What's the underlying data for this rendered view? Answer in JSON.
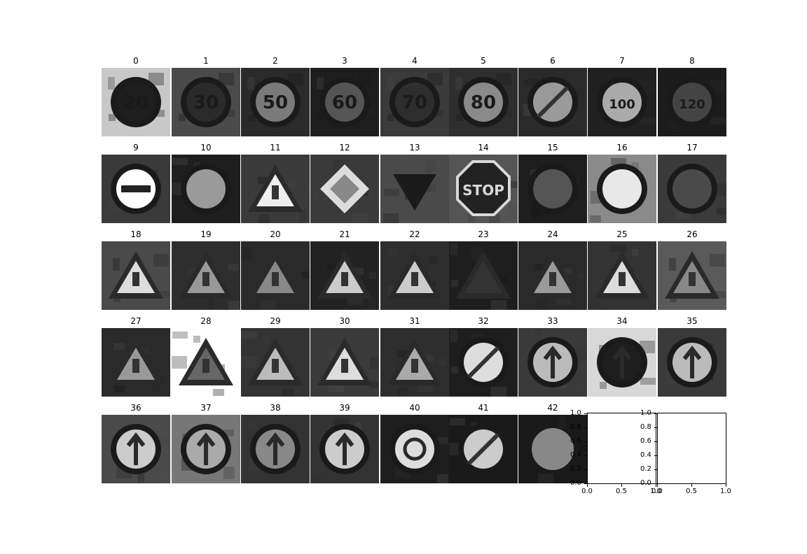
{
  "figure": {
    "tiles": [
      {
        "label": "0",
        "sign": "speed-limit-20",
        "bg": "#c8c8c8",
        "fg": "#1e1e1e",
        "text": "20"
      },
      {
        "label": "1",
        "sign": "speed-limit-30",
        "bg": "#4a4a4a",
        "fg": "#2a2a2a",
        "text": "30"
      },
      {
        "label": "2",
        "sign": "speed-limit-50",
        "bg": "#2a2a2a",
        "fg": "#7a7a7a",
        "text": "50"
      },
      {
        "label": "3",
        "sign": "speed-limit-60",
        "bg": "#1e1e1e",
        "fg": "#555555",
        "text": "60"
      },
      {
        "label": "4",
        "sign": "speed-limit-70",
        "bg": "#3a3a3a",
        "fg": "#2e2e2e",
        "text": "70"
      },
      {
        "label": "5",
        "sign": "speed-limit-80",
        "bg": "#2e2e2e",
        "fg": "#8a8a8a",
        "text": "80"
      },
      {
        "label": "6",
        "sign": "end-speed-limit-80",
        "bg": "#2a2a2a",
        "fg": "#9a9a9a",
        "text": ""
      },
      {
        "label": "7",
        "sign": "speed-limit-100",
        "bg": "#202020",
        "fg": "#aaaaaa",
        "text": "100"
      },
      {
        "label": "8",
        "sign": "speed-limit-120",
        "bg": "#1c1c1c",
        "fg": "#444444",
        "text": "120"
      },
      {
        "label": "9",
        "sign": "no-passing",
        "bg": "#3a3a3a",
        "fg": "#ffffff",
        "text": ""
      },
      {
        "label": "10",
        "sign": "no-passing-trucks",
        "bg": "#1e1e1e",
        "fg": "#9a9a9a",
        "text": ""
      },
      {
        "label": "11",
        "sign": "right-of-way",
        "bg": "#3a3a3a",
        "fg": "#eeeeee",
        "text": ""
      },
      {
        "label": "12",
        "sign": "priority-road",
        "bg": "#3a3a3a",
        "fg": "#dddddd",
        "text": ""
      },
      {
        "label": "13",
        "sign": "yield",
        "bg": "#4a4a4a",
        "fg": "#1a1a1a",
        "text": ""
      },
      {
        "label": "14",
        "sign": "stop",
        "bg": "#555555",
        "fg": "#d8d8d8",
        "text": "STOP"
      },
      {
        "label": "15",
        "sign": "no-vehicles",
        "bg": "#1e1e1e",
        "fg": "#555555",
        "text": ""
      },
      {
        "label": "16",
        "sign": "no-trucks",
        "bg": "#8a8a8a",
        "fg": "#e8e8e8",
        "text": ""
      },
      {
        "label": "17",
        "sign": "no-entry",
        "bg": "#3a3a3a",
        "fg": "#4a4a4a",
        "text": ""
      },
      {
        "label": "18",
        "sign": "general-caution",
        "bg": "#4a4a4a",
        "fg": "#dddddd",
        "text": ""
      },
      {
        "label": "19",
        "sign": "dangerous-curve-left",
        "bg": "#2e2e2e",
        "fg": "#999999",
        "text": ""
      },
      {
        "label": "20",
        "sign": "dangerous-curve-right",
        "bg": "#2a2a2a",
        "fg": "#888888",
        "text": ""
      },
      {
        "label": "21",
        "sign": "double-curve",
        "bg": "#222222",
        "fg": "#cccccc",
        "text": ""
      },
      {
        "label": "22",
        "sign": "bumpy-road",
        "bg": "#2e2e2e",
        "fg": "#cccccc",
        "text": ""
      },
      {
        "label": "23",
        "sign": "slippery-road",
        "bg": "#1e1e1e",
        "fg": "#333333",
        "text": ""
      },
      {
        "label": "24",
        "sign": "road-narrows",
        "bg": "#2a2a2a",
        "fg": "#9a9a9a",
        "text": ""
      },
      {
        "label": "25",
        "sign": "road-work",
        "bg": "#333333",
        "fg": "#dddddd",
        "text": ""
      },
      {
        "label": "26",
        "sign": "traffic-signals",
        "bg": "#5a5a5a",
        "fg": "#888888",
        "text": ""
      },
      {
        "label": "27",
        "sign": "pedestrians",
        "bg": "#2a2a2a",
        "fg": "#999999",
        "text": ""
      },
      {
        "label": "28",
        "sign": "children-crossing",
        "bg": "#ffffff",
        "fg": "#666666",
        "text": ""
      },
      {
        "label": "29",
        "sign": "bicycles-crossing",
        "bg": "#333333",
        "fg": "#bbbbbb",
        "text": ""
      },
      {
        "label": "30",
        "sign": "ice-snow",
        "bg": "#3a3a3a",
        "fg": "#dddddd",
        "text": ""
      },
      {
        "label": "31",
        "sign": "wild-animals",
        "bg": "#2e2e2e",
        "fg": "#aaaaaa",
        "text": ""
      },
      {
        "label": "32",
        "sign": "end-of-limits",
        "bg": "#1e1e1e",
        "fg": "#dddddd",
        "text": ""
      },
      {
        "label": "33",
        "sign": "turn-right-ahead",
        "bg": "#3a3a3a",
        "fg": "#bbbbbb",
        "text": ""
      },
      {
        "label": "34",
        "sign": "turn-left-ahead",
        "bg": "#d8d8d8",
        "fg": "#1e1e1e",
        "text": ""
      },
      {
        "label": "35",
        "sign": "ahead-only",
        "bg": "#3a3a3a",
        "fg": "#bbbbbb",
        "text": ""
      },
      {
        "label": "36",
        "sign": "go-straight-or-right",
        "bg": "#4a4a4a",
        "fg": "#cccccc",
        "text": ""
      },
      {
        "label": "37",
        "sign": "go-straight-or-left",
        "bg": "#777777",
        "fg": "#aaaaaa",
        "text": ""
      },
      {
        "label": "38",
        "sign": "keep-right",
        "bg": "#333333",
        "fg": "#888888",
        "text": ""
      },
      {
        "label": "39",
        "sign": "keep-left",
        "bg": "#333333",
        "fg": "#cccccc",
        "text": ""
      },
      {
        "label": "40",
        "sign": "roundabout-mandatory",
        "bg": "#1e1e1e",
        "fg": "#dddddd",
        "text": ""
      },
      {
        "label": "41",
        "sign": "end-of-no-passing",
        "bg": "#1a1a1a",
        "fg": "#cccccc",
        "text": ""
      },
      {
        "label": "42",
        "sign": "end-no-passing-trucks",
        "bg": "#1a1a1a",
        "fg": "#888888",
        "text": ""
      }
    ],
    "empty_axes": [
      {
        "yticks": [
          "0.0",
          "0.2",
          "0.4",
          "0.6",
          "0.8",
          "1.0"
        ],
        "xticks": [
          "0.0",
          "0.5",
          "1.0"
        ]
      },
      {
        "yticks": [
          "0.0",
          "0.2",
          "0.4",
          "0.6",
          "0.8",
          "1.0"
        ],
        "xticks": [
          "0.0",
          "0.5",
          "1.0"
        ]
      }
    ]
  }
}
